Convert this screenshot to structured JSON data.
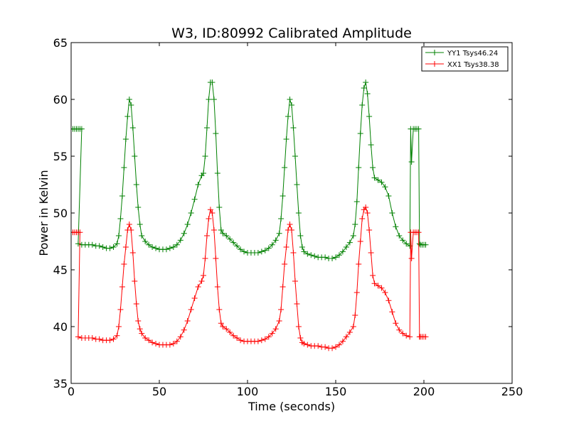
{
  "chart_data": {
    "type": "line",
    "title": "W3, ID:80992 Calibrated Amplitude",
    "xlabel": "Time (seconds)",
    "ylabel": "Power in Kelvin",
    "xlim": [
      0,
      250
    ],
    "ylim": [
      35,
      65
    ],
    "xticks": [
      "0",
      "50",
      "100",
      "150",
      "200",
      "250"
    ],
    "yticks": [
      "35",
      "40",
      "45",
      "50",
      "55",
      "60",
      "65"
    ],
    "grid": false,
    "legend_position": "top-right",
    "series": [
      {
        "name": "YY1 Tsys46.24",
        "color": "#008000",
        "marker": "+",
        "points": [
          [
            0,
            57.4
          ],
          [
            1,
            57.4
          ],
          [
            2,
            57.4
          ],
          [
            3,
            57.4
          ],
          [
            4,
            57.4
          ],
          [
            5,
            57.4
          ],
          [
            6,
            57.4
          ],
          [
            4,
            47.3
          ],
          [
            6,
            47.2
          ],
          [
            8,
            47.2
          ],
          [
            10,
            47.2
          ],
          [
            12,
            47.2
          ],
          [
            14,
            47.1
          ],
          [
            16,
            47.1
          ],
          [
            18,
            47.0
          ],
          [
            20,
            46.9
          ],
          [
            22,
            46.9
          ],
          [
            24,
            47.0
          ],
          [
            26,
            47.3
          ],
          [
            27,
            48.0
          ],
          [
            28,
            49.5
          ],
          [
            29,
            51.5
          ],
          [
            30,
            54.0
          ],
          [
            31,
            56.5
          ],
          [
            32,
            58.5
          ],
          [
            33,
            60.0
          ],
          [
            34,
            59.5
          ],
          [
            35,
            57.5
          ],
          [
            36,
            55.0
          ],
          [
            37,
            52.5
          ],
          [
            38,
            50.5
          ],
          [
            39,
            49.0
          ],
          [
            40,
            48.0
          ],
          [
            42,
            47.5
          ],
          [
            44,
            47.2
          ],
          [
            46,
            47.0
          ],
          [
            48,
            46.9
          ],
          [
            50,
            46.8
          ],
          [
            52,
            46.8
          ],
          [
            54,
            46.8
          ],
          [
            56,
            46.9
          ],
          [
            58,
            47.0
          ],
          [
            60,
            47.2
          ],
          [
            62,
            47.6
          ],
          [
            64,
            48.2
          ],
          [
            66,
            49.0
          ],
          [
            68,
            50.0
          ],
          [
            70,
            51.2
          ],
          [
            72,
            52.5
          ],
          [
            74,
            53.3
          ],
          [
            75,
            53.5
          ],
          [
            76,
            55.0
          ],
          [
            77,
            57.5
          ],
          [
            78,
            60.0
          ],
          [
            79,
            61.5
          ],
          [
            80,
            61.5
          ],
          [
            81,
            60.0
          ],
          [
            82,
            57.0
          ],
          [
            83,
            53.5
          ],
          [
            84,
            50.5
          ],
          [
            85,
            48.5
          ],
          [
            86,
            48.2
          ],
          [
            88,
            48.0
          ],
          [
            90,
            47.7
          ],
          [
            92,
            47.4
          ],
          [
            94,
            47.1
          ],
          [
            96,
            46.8
          ],
          [
            98,
            46.6
          ],
          [
            100,
            46.5
          ],
          [
            102,
            46.5
          ],
          [
            104,
            46.5
          ],
          [
            106,
            46.5
          ],
          [
            108,
            46.6
          ],
          [
            110,
            46.7
          ],
          [
            112,
            46.9
          ],
          [
            114,
            47.2
          ],
          [
            116,
            47.6
          ],
          [
            118,
            48.2
          ],
          [
            119,
            49.5
          ],
          [
            120,
            51.5
          ],
          [
            121,
            54.0
          ],
          [
            122,
            56.5
          ],
          [
            123,
            58.5
          ],
          [
            124,
            60.0
          ],
          [
            125,
            59.5
          ],
          [
            126,
            57.5
          ],
          [
            127,
            55.0
          ],
          [
            128,
            52.5
          ],
          [
            129,
            50.0
          ],
          [
            130,
            48.0
          ],
          [
            131,
            47.0
          ],
          [
            132,
            46.6
          ],
          [
            134,
            46.4
          ],
          [
            136,
            46.3
          ],
          [
            138,
            46.2
          ],
          [
            140,
            46.1
          ],
          [
            142,
            46.1
          ],
          [
            144,
            46.1
          ],
          [
            146,
            46.0
          ],
          [
            148,
            46.0
          ],
          [
            150,
            46.1
          ],
          [
            152,
            46.3
          ],
          [
            154,
            46.6
          ],
          [
            156,
            47.0
          ],
          [
            158,
            47.4
          ],
          [
            160,
            48.0
          ],
          [
            161,
            49.0
          ],
          [
            162,
            51.0
          ],
          [
            163,
            54.0
          ],
          [
            164,
            57.0
          ],
          [
            165,
            59.5
          ],
          [
            166,
            61.0
          ],
          [
            167,
            61.5
          ],
          [
            168,
            60.5
          ],
          [
            169,
            58.5
          ],
          [
            170,
            56.0
          ],
          [
            171,
            54.0
          ],
          [
            172,
            53.1
          ],
          [
            174,
            52.9
          ],
          [
            176,
            52.7
          ],
          [
            178,
            52.3
          ],
          [
            180,
            51.5
          ],
          [
            182,
            50.0
          ],
          [
            184,
            48.8
          ],
          [
            186,
            48.0
          ],
          [
            188,
            47.6
          ],
          [
            190,
            47.3
          ],
          [
            192,
            47.1
          ],
          [
            192.5,
            57.4
          ],
          [
            193,
            54.5
          ],
          [
            194,
            57.4
          ],
          [
            195,
            57.4
          ],
          [
            196,
            57.4
          ],
          [
            197,
            57.4
          ],
          [
            197.5,
            47.3
          ],
          [
            198,
            47.2
          ],
          [
            199,
            47.2
          ],
          [
            200,
            47.2
          ],
          [
            201,
            47.2
          ]
        ]
      },
      {
        "name": "XX1 Tsys38.38",
        "color": "#ff0000",
        "marker": "+",
        "points": [
          [
            0,
            48.3
          ],
          [
            1,
            48.3
          ],
          [
            2,
            48.3
          ],
          [
            3,
            48.3
          ],
          [
            4,
            48.3
          ],
          [
            5,
            48.3
          ],
          [
            4,
            39.1
          ],
          [
            6,
            39.0
          ],
          [
            8,
            39.0
          ],
          [
            10,
            39.0
          ],
          [
            12,
            39.0
          ],
          [
            14,
            38.9
          ],
          [
            16,
            38.9
          ],
          [
            18,
            38.8
          ],
          [
            20,
            38.8
          ],
          [
            22,
            38.8
          ],
          [
            24,
            38.9
          ],
          [
            26,
            39.2
          ],
          [
            27,
            40.0
          ],
          [
            28,
            41.5
          ],
          [
            29,
            43.5
          ],
          [
            30,
            45.5
          ],
          [
            31,
            47.0
          ],
          [
            32,
            48.5
          ],
          [
            33,
            49.0
          ],
          [
            34,
            48.5
          ],
          [
            35,
            46.5
          ],
          [
            36,
            44.0
          ],
          [
            37,
            42.0
          ],
          [
            38,
            40.5
          ],
          [
            39,
            39.8
          ],
          [
            40,
            39.4
          ],
          [
            42,
            39.0
          ],
          [
            44,
            38.8
          ],
          [
            46,
            38.6
          ],
          [
            48,
            38.5
          ],
          [
            50,
            38.4
          ],
          [
            52,
            38.4
          ],
          [
            54,
            38.4
          ],
          [
            56,
            38.4
          ],
          [
            58,
            38.5
          ],
          [
            60,
            38.7
          ],
          [
            62,
            39.1
          ],
          [
            64,
            39.7
          ],
          [
            66,
            40.5
          ],
          [
            68,
            41.5
          ],
          [
            70,
            42.5
          ],
          [
            72,
            43.5
          ],
          [
            74,
            44.0
          ],
          [
            75,
            44.5
          ],
          [
            76,
            46.0
          ],
          [
            77,
            48.0
          ],
          [
            78,
            49.5
          ],
          [
            79,
            50.3
          ],
          [
            80,
            50.0
          ],
          [
            81,
            48.5
          ],
          [
            82,
            46.0
          ],
          [
            83,
            43.5
          ],
          [
            84,
            41.5
          ],
          [
            85,
            40.3
          ],
          [
            86,
            40.0
          ],
          [
            88,
            39.8
          ],
          [
            90,
            39.5
          ],
          [
            92,
            39.2
          ],
          [
            94,
            39.0
          ],
          [
            96,
            38.8
          ],
          [
            98,
            38.7
          ],
          [
            100,
            38.7
          ],
          [
            102,
            38.7
          ],
          [
            104,
            38.7
          ],
          [
            106,
            38.7
          ],
          [
            108,
            38.8
          ],
          [
            110,
            38.9
          ],
          [
            112,
            39.1
          ],
          [
            114,
            39.4
          ],
          [
            116,
            39.8
          ],
          [
            118,
            40.5
          ],
          [
            119,
            41.5
          ],
          [
            120,
            43.5
          ],
          [
            121,
            45.5
          ],
          [
            122,
            47.0
          ],
          [
            123,
            48.5
          ],
          [
            124,
            49.0
          ],
          [
            125,
            48.5
          ],
          [
            126,
            46.5
          ],
          [
            127,
            44.0
          ],
          [
            128,
            42.0
          ],
          [
            129,
            40.0
          ],
          [
            130,
            39.0
          ],
          [
            131,
            38.6
          ],
          [
            132,
            38.5
          ],
          [
            134,
            38.4
          ],
          [
            136,
            38.3
          ],
          [
            138,
            38.3
          ],
          [
            140,
            38.3
          ],
          [
            142,
            38.2
          ],
          [
            144,
            38.2
          ],
          [
            146,
            38.1
          ],
          [
            148,
            38.1
          ],
          [
            150,
            38.2
          ],
          [
            152,
            38.4
          ],
          [
            154,
            38.7
          ],
          [
            156,
            39.1
          ],
          [
            158,
            39.5
          ],
          [
            160,
            40.0
          ],
          [
            161,
            41.0
          ],
          [
            162,
            43.0
          ],
          [
            163,
            45.5
          ],
          [
            164,
            47.5
          ],
          [
            165,
            49.5
          ],
          [
            166,
            50.3
          ],
          [
            167,
            50.5
          ],
          [
            168,
            50.0
          ],
          [
            169,
            48.5
          ],
          [
            170,
            46.5
          ],
          [
            171,
            44.5
          ],
          [
            172,
            43.8
          ],
          [
            174,
            43.6
          ],
          [
            176,
            43.4
          ],
          [
            178,
            43.0
          ],
          [
            180,
            42.3
          ],
          [
            182,
            41.3
          ],
          [
            184,
            40.3
          ],
          [
            186,
            39.7
          ],
          [
            188,
            39.4
          ],
          [
            190,
            39.2
          ],
          [
            192,
            39.1
          ],
          [
            192.5,
            48.3
          ],
          [
            193,
            46.0
          ],
          [
            194,
            48.3
          ],
          [
            195,
            48.3
          ],
          [
            196,
            48.3
          ],
          [
            197,
            48.3
          ],
          [
            197.5,
            39.1
          ],
          [
            198,
            39.1
          ],
          [
            199,
            39.1
          ],
          [
            200,
            39.1
          ],
          [
            201,
            39.1
          ]
        ]
      }
    ]
  }
}
